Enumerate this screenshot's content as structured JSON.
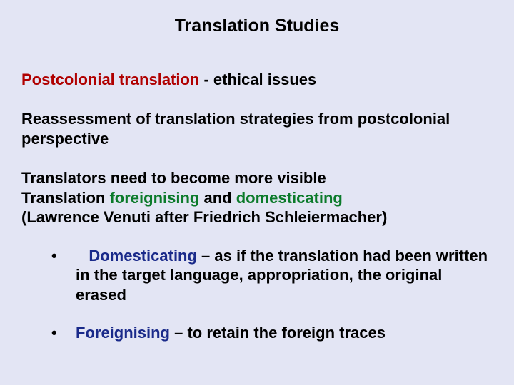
{
  "colors": {
    "background": "#e3e5f4",
    "text": "#000000",
    "red": "#b00000",
    "green": "#0b7a2a",
    "blue": "#1a2a8a"
  },
  "typography": {
    "font_family": "Arial, Helvetica, sans-serif",
    "title_fontsize": 25,
    "body_fontsize": 22,
    "bold": true
  },
  "title": "Translation Studies",
  "subtitle": {
    "red_part": "Postcolonial translation",
    "rest": " - ethical issues"
  },
  "para1": "Reassessment of translation strategies from postcolonial perspective",
  "para2": {
    "line1": "Translators need to become more visible",
    "line2_pre": "Translation ",
    "line2_kw1": "foreignising",
    "line2_mid": " and ",
    "line2_kw2": "domesticating",
    "line3": "(Lawrence Venuti after Friedrich Schleiermacher)"
  },
  "bullets": [
    {
      "lead_spaces": "   ",
      "keyword": "Domesticating",
      "keyword_color": "blue",
      "rest": " – as if the translation had been written in the target language, appropriation, the original erased"
    },
    {
      "lead_spaces": "",
      "keyword": "Foreignising",
      "keyword_color": "blue",
      "rest": " – to retain the foreign traces"
    }
  ],
  "bullet_glyph": "•"
}
